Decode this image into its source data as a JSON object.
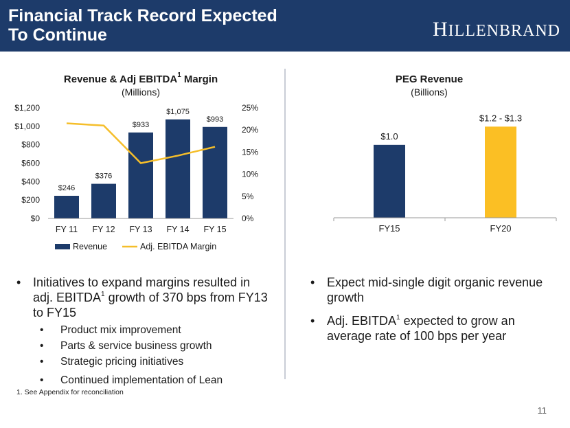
{
  "header": {
    "title_line1": "Financial Track Record Expected",
    "title_line2": "To Continue",
    "logo_first": "H",
    "logo_rest": "ILLENBRAND"
  },
  "left_chart": {
    "title_prefix": "Revenue & Adj EBITDA",
    "title_sup": "1",
    "title_suffix": " Margin",
    "subtitle": "(Millions)"
  },
  "right_chart": {
    "title": "PEG Revenue",
    "subtitle": "(Billions)"
  },
  "chart_data": [
    {
      "type": "bar",
      "title": "Revenue & Adj EBITDA1 Margin",
      "subtitle": "(Millions)",
      "categories": [
        "FY 11",
        "FY 12",
        "FY 13",
        "FY 14",
        "FY 15"
      ],
      "series": [
        {
          "name": "Revenue",
          "type": "bar",
          "values": [
            246,
            376,
            933,
            1075,
            993
          ],
          "labels": [
            "$246",
            "$376",
            "$933",
            "$1,075",
            "$993"
          ],
          "color": "#1d3b6a"
        },
        {
          "name": "Adj. EBITDA Margin",
          "type": "line",
          "axis": "right",
          "values": [
            21.5,
            21.0,
            12.5,
            14.2,
            16.2
          ],
          "color": "#f5be2a"
        }
      ],
      "y_left": {
        "ylim": [
          0,
          1200
        ],
        "ticks": [
          "$0",
          "$200",
          "$400",
          "$600",
          "$800",
          "$1,000",
          "$1,200"
        ]
      },
      "y_right": {
        "ylim": [
          0,
          25
        ],
        "ticks": [
          "0%",
          "5%",
          "10%",
          "15%",
          "20%",
          "25%"
        ]
      },
      "legend": [
        "Revenue",
        "Adj. EBITDA Margin"
      ]
    },
    {
      "type": "bar",
      "title": "PEG Revenue",
      "subtitle": "(Billions)",
      "categories": [
        "FY15",
        "FY20"
      ],
      "values": [
        1.0,
        1.25
      ],
      "labels": [
        "$1.0",
        "$1.2 - $1.3"
      ],
      "colors": [
        "#1d3b6a",
        "#fbbf24"
      ]
    }
  ],
  "left_bullets": {
    "main_prefix": "Initiatives to expand margins resulted in adj. EBITDA",
    "main_sup": "1",
    "main_suffix": " growth of 370 bps from FY13 to FY15",
    "sub": [
      "Product mix improvement",
      "Parts & service business growth",
      "Strategic pricing initiatives",
      "Continued implementation of Lean"
    ]
  },
  "right_bullets": {
    "b1": "Expect mid-single digit organic revenue growth",
    "b2_prefix": "Adj. EBITDA",
    "b2_sup": "1",
    "b2_suffix": " expected to grow an average rate of 100 bps per year"
  },
  "footnote": "1. See Appendix for reconciliation",
  "page_number": "11"
}
